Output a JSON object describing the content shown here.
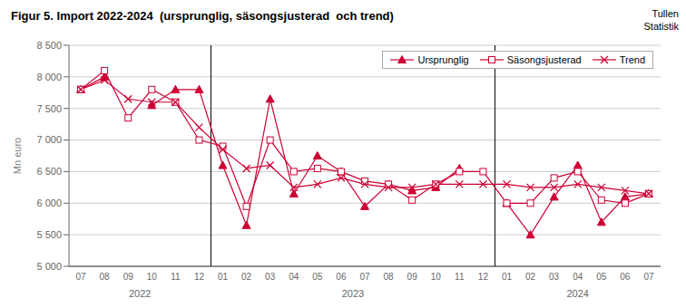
{
  "chart_data": {
    "type": "line",
    "title": "Figur 5. Import 2022-2024  (ursprunglig, säsongsjusterad  och trend)",
    "annotations": [
      "Tullen\nStatistik"
    ],
    "y_label": "Mn euro",
    "categories": [
      "07",
      "08",
      "09",
      "10",
      "11",
      "12",
      "01",
      "02",
      "03",
      "04",
      "05",
      "06",
      "07",
      "08",
      "09",
      "10",
      "11",
      "12",
      "01",
      "02",
      "03",
      "04",
      "05",
      "06",
      "07"
    ],
    "groups": [
      {
        "label": "2022",
        "from": 0,
        "to": 5
      },
      {
        "label": "2023",
        "from": 6,
        "to": 17
      },
      {
        "label": "2024",
        "from": 18,
        "to": 24
      }
    ],
    "series": [
      {
        "name": "Ursprunglig",
        "color": "#cc0033",
        "marker": "triangle",
        "line_style": "solid",
        "values": [
          7800,
          8000,
          null,
          7550,
          7800,
          7800,
          6600,
          5650,
          7650,
          6150,
          6750,
          6500,
          5950,
          6300,
          6200,
          6250,
          6550,
          null,
          6000,
          5500,
          6100,
          6600,
          5700,
          6100,
          6150
        ]
      },
      {
        "name": "Säsongsjusterad",
        "color": "#cc0033",
        "marker": "square",
        "line_style": "solid",
        "values": [
          7800,
          8100,
          7350,
          7800,
          7600,
          7000,
          6900,
          5950,
          7000,
          6500,
          6550,
          6500,
          6350,
          6300,
          6050,
          6300,
          6500,
          6500,
          6000,
          6000,
          6400,
          6500,
          6050,
          6000,
          6150
        ]
      },
      {
        "name": "Trend",
        "color": "#cc0033",
        "marker": "x",
        "line_style": "solid",
        "values": [
          7800,
          7950,
          7650,
          7600,
          7600,
          7200,
          6850,
          6550,
          6600,
          6250,
          6300,
          6400,
          6300,
          6250,
          6250,
          6300,
          6300,
          6300,
          6300,
          6250,
          6250,
          6300,
          6250,
          6200,
          6150
        ]
      }
    ],
    "ylim": [
      5000,
      8500
    ],
    "yticks": [
      {
        "value": 5000,
        "label": "5 000"
      },
      {
        "value": 5500,
        "label": "5 500"
      },
      {
        "value": 6000,
        "label": "6 000"
      },
      {
        "value": 6500,
        "label": "6 500"
      },
      {
        "value": 7000,
        "label": "7 000"
      },
      {
        "value": 7500,
        "label": "7 500"
      },
      {
        "value": 8000,
        "label": "8 000"
      },
      {
        "value": 8500,
        "label": "8 500"
      }
    ],
    "grid": true,
    "legend": "upper right"
  }
}
